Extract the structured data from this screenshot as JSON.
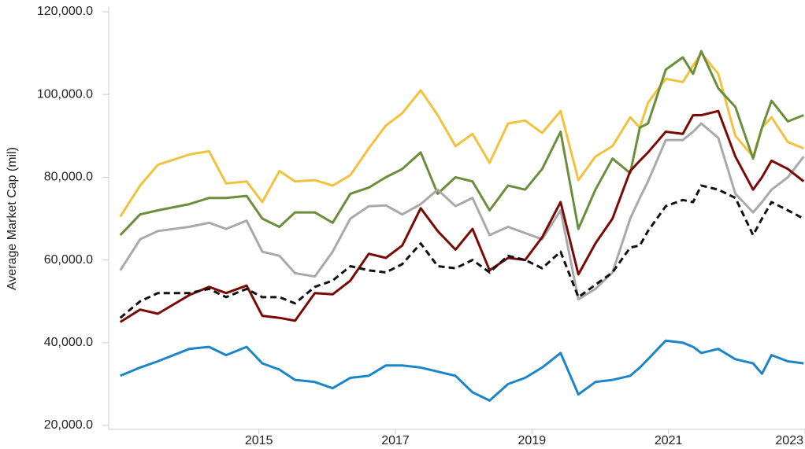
{
  "chart_data": {
    "type": "line",
    "y_label": "Average Market Cap (mil)",
    "x": [
      2012.97,
      2013.26,
      2013.52,
      2013.98,
      2014.27,
      2014.52,
      2014.82,
      2015.05,
      2015.3,
      2015.53,
      2015.82,
      2016.08,
      2016.34,
      2016.61,
      2016.86,
      2017.1,
      2017.37,
      2017.62,
      2017.88,
      2018.13,
      2018.38,
      2018.65,
      2018.9,
      2019.15,
      2019.42,
      2019.68,
      2019.93,
      2020.18,
      2020.44,
      2020.58,
      2020.7,
      2020.96,
      2021.21,
      2021.36,
      2021.48,
      2021.73,
      2021.98,
      2022.24,
      2022.37,
      2022.51,
      2022.75,
      2022.98
    ],
    "series": [
      {
        "color": "#f2c23d",
        "dash": false,
        "values": [
          70500,
          78000,
          83000,
          85500,
          86300,
          78500,
          79000,
          74000,
          81500,
          79000,
          79300,
          78000,
          80500,
          87000,
          92500,
          95500,
          101000,
          95000,
          87500,
          90500,
          83500,
          93000,
          93700,
          90700,
          96000,
          79300,
          85000,
          87500,
          94500,
          92000,
          98000,
          103800,
          103000,
          107000,
          110000,
          105000,
          90000,
          85000,
          92000,
          94500,
          88500,
          87000
        ]
      },
      {
        "color": "#6a8e3b",
        "dash": false,
        "values": [
          66000,
          71000,
          72000,
          73500,
          75000,
          75000,
          75500,
          70000,
          68000,
          71500,
          71500,
          69000,
          76000,
          77500,
          80000,
          82000,
          86000,
          76000,
          80000,
          79000,
          72000,
          78000,
          77000,
          82000,
          91000,
          67500,
          77000,
          84500,
          81000,
          92000,
          93000,
          106000,
          109000,
          105000,
          110500,
          101500,
          97000,
          84500,
          92000,
          98500,
          93500,
          95000
        ]
      },
      {
        "color": "#a9a9a9",
        "dash": false,
        "values": [
          57500,
          65000,
          67000,
          68000,
          69000,
          67500,
          69500,
          62000,
          61000,
          56800,
          56000,
          62000,
          70000,
          73000,
          73200,
          71000,
          73500,
          77000,
          73000,
          75000,
          66000,
          68000,
          66500,
          65000,
          72000,
          50500,
          53000,
          57000,
          70000,
          75000,
          79000,
          89000,
          89000,
          91000,
          93000,
          89500,
          76000,
          71500,
          74000,
          77000,
          80000,
          85000
        ]
      },
      {
        "color": "#7a0a06",
        "dash": false,
        "values": [
          45000,
          48000,
          47000,
          51500,
          53500,
          52000,
          53800,
          46500,
          46000,
          45300,
          52000,
          51700,
          55000,
          61500,
          60500,
          63500,
          72500,
          67000,
          62500,
          67500,
          57500,
          60500,
          60000,
          65500,
          74000,
          56500,
          64000,
          70000,
          81500,
          84000,
          86000,
          91000,
          90500,
          95000,
          95000,
          96000,
          85000,
          77000,
          80000,
          84000,
          82000,
          79000
        ]
      },
      {
        "color": "#111111",
        "dash": true,
        "values": [
          46000,
          50000,
          52000,
          52000,
          53000,
          51000,
          53000,
          51000,
          51000,
          49500,
          53500,
          55000,
          58500,
          57500,
          57000,
          59000,
          64000,
          58500,
          58000,
          60000,
          57000,
          61000,
          60000,
          58000,
          62000,
          51000,
          54000,
          57000,
          63000,
          63500,
          67000,
          73000,
          74500,
          74000,
          78000,
          77000,
          75000,
          66000,
          70000,
          74000,
          72000,
          70000
        ]
      },
      {
        "color": "#1a86c7",
        "dash": false,
        "values": [
          32000,
          34000,
          35500,
          38500,
          39000,
          37000,
          39000,
          35000,
          33500,
          31000,
          30500,
          29000,
          31500,
          32000,
          34500,
          34500,
          34000,
          33000,
          32000,
          28000,
          26000,
          30000,
          31500,
          34000,
          37500,
          27500,
          30500,
          31000,
          32000,
          34000,
          36000,
          40500,
          40000,
          39000,
          37500,
          38500,
          36000,
          35000,
          32500,
          37000,
          35500,
          35000
        ]
      }
    ],
    "xlim": [
      2012.8,
      2023.0
    ],
    "xticks": [
      2015,
      2017,
      2019,
      2021,
      2023
    ],
    "ylim": [
      20000,
      120000
    ],
    "yticks": [
      {
        "value": 20000,
        "label": "20,000.0"
      },
      {
        "value": 40000,
        "label": "40,000.0"
      },
      {
        "value": 60000,
        "label": "60,000.0"
      },
      {
        "value": 80000,
        "label": "80,000.0"
      },
      {
        "value": 100000,
        "label": "100,000.0"
      },
      {
        "value": 120000,
        "label": "120,000.0"
      }
    ]
  }
}
